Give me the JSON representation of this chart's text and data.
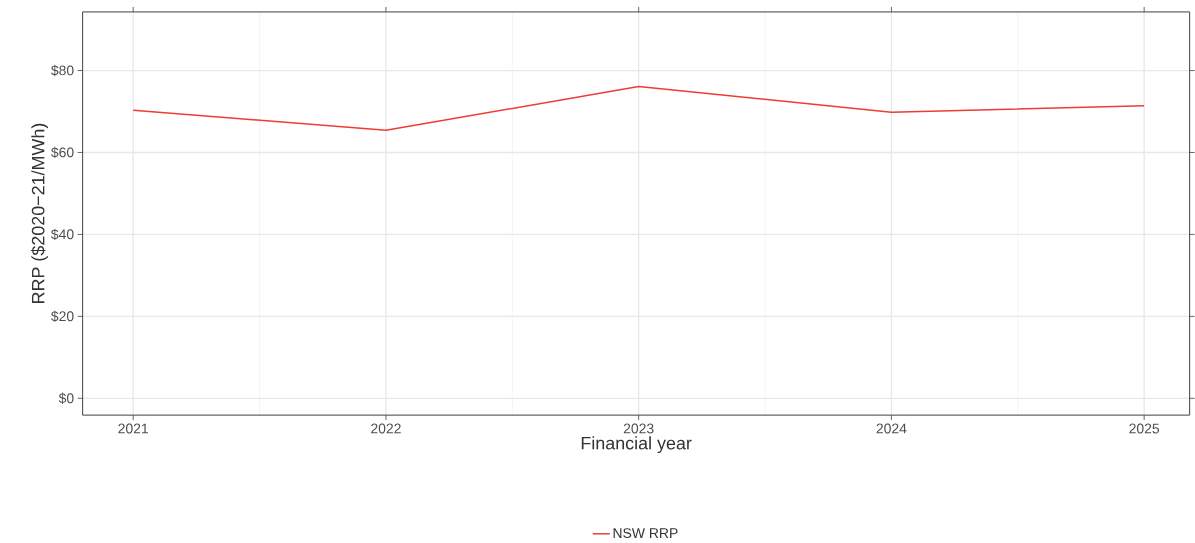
{
  "chart_data": {
    "type": "line",
    "xlabel": "Financial year",
    "ylabel": "RRP ($2020−21/MWh)",
    "x": [
      2021,
      2022,
      2023,
      2024,
      2025
    ],
    "series": [
      {
        "name": "NSW RRP",
        "color": "#ee3b34",
        "values": [
          70.3,
          65.4,
          76.1,
          69.8,
          71.4
        ]
      }
    ],
    "xlim": [
      2020.8,
      2025.18
    ],
    "ylim": [
      -4.1,
      94.3
    ],
    "xticks": [
      2021,
      2022,
      2023,
      2024,
      2025
    ],
    "yticks": [
      {
        "value": 0,
        "label": "$0"
      },
      {
        "value": 20,
        "label": "$20"
      },
      {
        "value": 40,
        "label": "$40"
      },
      {
        "value": 60,
        "label": "$60"
      },
      {
        "value": 80,
        "label": "$80"
      }
    ],
    "grid": true,
    "legend": "bottom",
    "marker": "none",
    "line_style": "solid"
  }
}
